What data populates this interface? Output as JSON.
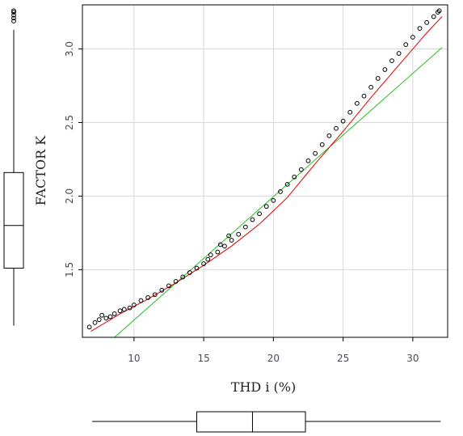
{
  "chart_data": {
    "type": "scatter",
    "xlabel": "THD i (%)",
    "ylabel": "FACTOR K",
    "xlim": [
      6.3,
      32.5
    ],
    "ylim": [
      1.04,
      3.3
    ],
    "x_ticks": [
      10,
      15,
      20,
      25,
      30
    ],
    "y_ticks": [
      1.5,
      2.0,
      2.5,
      3.0
    ],
    "x_tick_labels": [
      "10",
      "15",
      "20",
      "25",
      "30"
    ],
    "y_tick_labels": [
      "1.5",
      "2.0",
      "2.5",
      "3.0"
    ],
    "grid": true,
    "points": [
      {
        "x": 6.8,
        "y": 1.11
      },
      {
        "x": 7.2,
        "y": 1.14
      },
      {
        "x": 7.5,
        "y": 1.16
      },
      {
        "x": 7.7,
        "y": 1.19
      },
      {
        "x": 8.0,
        "y": 1.17
      },
      {
        "x": 8.3,
        "y": 1.18
      },
      {
        "x": 8.6,
        "y": 1.2
      },
      {
        "x": 9.0,
        "y": 1.22
      },
      {
        "x": 9.3,
        "y": 1.23
      },
      {
        "x": 9.7,
        "y": 1.24
      },
      {
        "x": 10.0,
        "y": 1.26
      },
      {
        "x": 10.5,
        "y": 1.29
      },
      {
        "x": 11.0,
        "y": 1.31
      },
      {
        "x": 11.5,
        "y": 1.33
      },
      {
        "x": 12.0,
        "y": 1.36
      },
      {
        "x": 12.5,
        "y": 1.39
      },
      {
        "x": 13.0,
        "y": 1.42
      },
      {
        "x": 13.5,
        "y": 1.45
      },
      {
        "x": 14.0,
        "y": 1.48
      },
      {
        "x": 14.5,
        "y": 1.51
      },
      {
        "x": 15.0,
        "y": 1.54
      },
      {
        "x": 15.3,
        "y": 1.57
      },
      {
        "x": 15.5,
        "y": 1.6
      },
      {
        "x": 16.0,
        "y": 1.62
      },
      {
        "x": 16.2,
        "y": 1.67
      },
      {
        "x": 16.5,
        "y": 1.66
      },
      {
        "x": 16.8,
        "y": 1.73
      },
      {
        "x": 17.0,
        "y": 1.7
      },
      {
        "x": 17.5,
        "y": 1.74
      },
      {
        "x": 18.0,
        "y": 1.79
      },
      {
        "x": 18.5,
        "y": 1.84
      },
      {
        "x": 19.0,
        "y": 1.88
      },
      {
        "x": 19.5,
        "y": 1.93
      },
      {
        "x": 20.0,
        "y": 1.97
      },
      {
        "x": 20.5,
        "y": 2.03
      },
      {
        "x": 21.0,
        "y": 2.08
      },
      {
        "x": 21.5,
        "y": 2.13
      },
      {
        "x": 22.0,
        "y": 2.18
      },
      {
        "x": 22.5,
        "y": 2.24
      },
      {
        "x": 23.0,
        "y": 2.29
      },
      {
        "x": 23.5,
        "y": 2.35
      },
      {
        "x": 24.0,
        "y": 2.41
      },
      {
        "x": 24.5,
        "y": 2.46
      },
      {
        "x": 25.0,
        "y": 2.51
      },
      {
        "x": 25.5,
        "y": 2.57
      },
      {
        "x": 26.0,
        "y": 2.63
      },
      {
        "x": 26.5,
        "y": 2.68
      },
      {
        "x": 27.0,
        "y": 2.74
      },
      {
        "x": 27.5,
        "y": 2.8
      },
      {
        "x": 28.0,
        "y": 2.86
      },
      {
        "x": 28.5,
        "y": 2.92
      },
      {
        "x": 29.0,
        "y": 2.97
      },
      {
        "x": 29.5,
        "y": 3.03
      },
      {
        "x": 30.0,
        "y": 3.08
      },
      {
        "x": 30.5,
        "y": 3.14
      },
      {
        "x": 31.0,
        "y": 3.18
      },
      {
        "x": 31.5,
        "y": 3.22
      },
      {
        "x": 31.8,
        "y": 3.25
      },
      {
        "x": 31.9,
        "y": 3.26
      }
    ],
    "fit_curve": {
      "color": "#dd0000",
      "x": [
        6.9,
        9,
        11,
        13,
        15,
        17,
        19,
        21,
        23,
        25,
        27,
        29,
        31,
        32.1
      ],
      "y": [
        1.08,
        1.2,
        1.3,
        1.41,
        1.53,
        1.66,
        1.81,
        1.99,
        2.22,
        2.44,
        2.67,
        2.89,
        3.11,
        3.22
      ]
    },
    "fit_line": {
      "color": "#22bb22",
      "x": [
        8.6,
        32.1
      ],
      "y": [
        1.04,
        3.01
      ]
    },
    "boxplot_y": {
      "min": 1.12,
      "q1": 1.51,
      "median": 1.8,
      "q3": 2.16,
      "max": 3.13,
      "outliers": [
        3.19,
        3.21,
        3.23,
        3.25,
        3.26
      ]
    },
    "boxplot_x": {
      "min": 7.0,
      "q1": 14.5,
      "median": 18.5,
      "q3": 22.3,
      "max": 32.0
    },
    "colors": {
      "points": "#000000",
      "grid": "#d9d9d9",
      "frame": "#000000"
    }
  }
}
